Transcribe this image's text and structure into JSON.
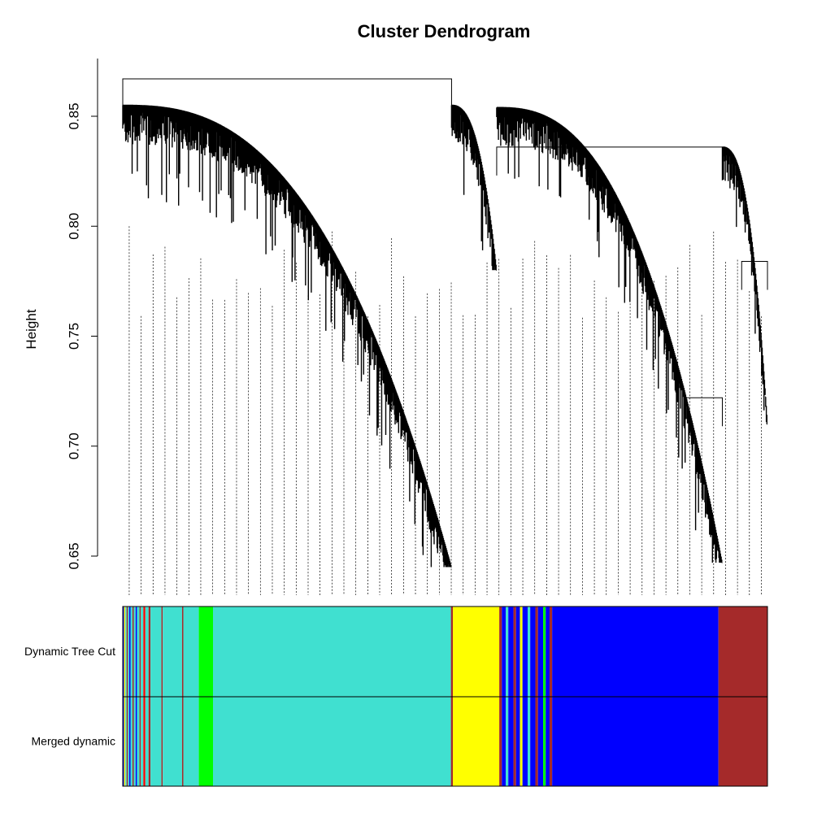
{
  "chart_data": {
    "type": "dendrogram",
    "title": "Cluster Dendrogram",
    "xlabel": "",
    "ylabel": "Height",
    "ylim": [
      0.645,
      0.868
    ],
    "yticks": [
      0.65,
      0.7,
      0.75,
      0.8,
      0.85
    ],
    "ytick_labels": [
      "0.65",
      "0.70",
      "0.75",
      "0.80",
      "0.85"
    ],
    "leaf_order_range": [
      0,
      1
    ],
    "clusters": [
      {
        "name": "turquoise",
        "color": "#40E0D0",
        "x_start": 0.138,
        "x_end": 0.51,
        "top_height": 0.855,
        "min_height": 0.645
      },
      {
        "name": "yellow",
        "color": "#FFFF00",
        "x_start": 0.51,
        "x_end": 0.58,
        "top_height": 0.855,
        "min_height": 0.78
      },
      {
        "name": "blue",
        "color": "#0000FF",
        "x_start": 0.58,
        "x_end": 0.93,
        "top_height": 0.854,
        "min_height": 0.647
      },
      {
        "name": "brown",
        "color": "#A52A2A",
        "x_start": 0.93,
        "x_end": 1.0,
        "top_height": 0.836,
        "min_height": 0.71
      }
    ],
    "merges": [
      {
        "left_x": 0.0,
        "right_x": 0.51,
        "height": 0.867
      },
      {
        "left_x": 0.58,
        "right_x": 0.93,
        "height": 0.836
      },
      {
        "left_x": 0.87,
        "right_x": 0.93,
        "height": 0.722
      },
      {
        "left_x": 0.96,
        "right_x": 1.0,
        "height": 0.784
      }
    ],
    "color_rows": [
      {
        "label": "Dynamic Tree Cut",
        "segments": [
          {
            "from": 0.0,
            "to": 0.002,
            "color": "#0000FF"
          },
          {
            "from": 0.002,
            "to": 0.004,
            "color": "#FFFF00"
          },
          {
            "from": 0.004,
            "to": 0.006,
            "color": "#40E0D0"
          },
          {
            "from": 0.006,
            "to": 0.008,
            "color": "#A52A2A"
          },
          {
            "from": 0.008,
            "to": 0.01,
            "color": "#40E0D0"
          },
          {
            "from": 0.01,
            "to": 0.012,
            "color": "#0000FF"
          },
          {
            "from": 0.012,
            "to": 0.015,
            "color": "#40E0D0"
          },
          {
            "from": 0.015,
            "to": 0.017,
            "color": "#A52A2A"
          },
          {
            "from": 0.017,
            "to": 0.02,
            "color": "#40E0D0"
          },
          {
            "from": 0.02,
            "to": 0.022,
            "color": "#0000FF"
          },
          {
            "from": 0.022,
            "to": 0.026,
            "color": "#40E0D0"
          },
          {
            "from": 0.026,
            "to": 0.028,
            "color": "#A52A2A"
          },
          {
            "from": 0.028,
            "to": 0.032,
            "color": "#40E0D0"
          },
          {
            "from": 0.032,
            "to": 0.035,
            "color": "#FF0000"
          },
          {
            "from": 0.035,
            "to": 0.04,
            "color": "#40E0D0"
          },
          {
            "from": 0.04,
            "to": 0.043,
            "color": "#A52A2A"
          },
          {
            "from": 0.043,
            "to": 0.06,
            "color": "#40E0D0"
          },
          {
            "from": 0.06,
            "to": 0.062,
            "color": "#A52A2A"
          },
          {
            "from": 0.062,
            "to": 0.092,
            "color": "#40E0D0"
          },
          {
            "from": 0.092,
            "to": 0.094,
            "color": "#A52A2A"
          },
          {
            "from": 0.094,
            "to": 0.118,
            "color": "#40E0D0"
          },
          {
            "from": 0.118,
            "to": 0.14,
            "color": "#00FF00"
          },
          {
            "from": 0.14,
            "to": 0.509,
            "color": "#40E0D0"
          },
          {
            "from": 0.509,
            "to": 0.512,
            "color": "#A52A2A"
          },
          {
            "from": 0.512,
            "to": 0.584,
            "color": "#FFFF00"
          },
          {
            "from": 0.584,
            "to": 0.588,
            "color": "#A52A2A"
          },
          {
            "from": 0.588,
            "to": 0.594,
            "color": "#0000FF"
          },
          {
            "from": 0.594,
            "to": 0.598,
            "color": "#40E0D0"
          },
          {
            "from": 0.598,
            "to": 0.606,
            "color": "#0000FF"
          },
          {
            "from": 0.606,
            "to": 0.61,
            "color": "#A52A2A"
          },
          {
            "from": 0.61,
            "to": 0.616,
            "color": "#0000FF"
          },
          {
            "from": 0.616,
            "to": 0.62,
            "color": "#FFFF00"
          },
          {
            "from": 0.62,
            "to": 0.628,
            "color": "#0000FF"
          },
          {
            "from": 0.628,
            "to": 0.632,
            "color": "#40E0D0"
          },
          {
            "from": 0.632,
            "to": 0.64,
            "color": "#0000FF"
          },
          {
            "from": 0.64,
            "to": 0.644,
            "color": "#A52A2A"
          },
          {
            "from": 0.644,
            "to": 0.652,
            "color": "#0000FF"
          },
          {
            "from": 0.652,
            "to": 0.656,
            "color": "#00FF00"
          },
          {
            "from": 0.656,
            "to": 0.662,
            "color": "#0000FF"
          },
          {
            "from": 0.662,
            "to": 0.666,
            "color": "#A52A2A"
          },
          {
            "from": 0.666,
            "to": 0.924,
            "color": "#0000FF"
          },
          {
            "from": 0.924,
            "to": 1.0,
            "color": "#A52A2A"
          }
        ]
      },
      {
        "label": "Merged dynamic",
        "segments": [
          {
            "from": 0.0,
            "to": 0.002,
            "color": "#0000FF"
          },
          {
            "from": 0.002,
            "to": 0.004,
            "color": "#FFFF00"
          },
          {
            "from": 0.004,
            "to": 0.006,
            "color": "#40E0D0"
          },
          {
            "from": 0.006,
            "to": 0.008,
            "color": "#A52A2A"
          },
          {
            "from": 0.008,
            "to": 0.01,
            "color": "#40E0D0"
          },
          {
            "from": 0.01,
            "to": 0.012,
            "color": "#0000FF"
          },
          {
            "from": 0.012,
            "to": 0.015,
            "color": "#40E0D0"
          },
          {
            "from": 0.015,
            "to": 0.017,
            "color": "#A52A2A"
          },
          {
            "from": 0.017,
            "to": 0.02,
            "color": "#40E0D0"
          },
          {
            "from": 0.02,
            "to": 0.022,
            "color": "#0000FF"
          },
          {
            "from": 0.022,
            "to": 0.026,
            "color": "#40E0D0"
          },
          {
            "from": 0.026,
            "to": 0.028,
            "color": "#A52A2A"
          },
          {
            "from": 0.028,
            "to": 0.032,
            "color": "#40E0D0"
          },
          {
            "from": 0.032,
            "to": 0.035,
            "color": "#FF0000"
          },
          {
            "from": 0.035,
            "to": 0.04,
            "color": "#40E0D0"
          },
          {
            "from": 0.04,
            "to": 0.043,
            "color": "#A52A2A"
          },
          {
            "from": 0.043,
            "to": 0.06,
            "color": "#40E0D0"
          },
          {
            "from": 0.06,
            "to": 0.062,
            "color": "#A52A2A"
          },
          {
            "from": 0.062,
            "to": 0.092,
            "color": "#40E0D0"
          },
          {
            "from": 0.092,
            "to": 0.094,
            "color": "#A52A2A"
          },
          {
            "from": 0.094,
            "to": 0.118,
            "color": "#40E0D0"
          },
          {
            "from": 0.118,
            "to": 0.14,
            "color": "#00FF00"
          },
          {
            "from": 0.14,
            "to": 0.509,
            "color": "#40E0D0"
          },
          {
            "from": 0.509,
            "to": 0.512,
            "color": "#A52A2A"
          },
          {
            "from": 0.512,
            "to": 0.584,
            "color": "#FFFF00"
          },
          {
            "from": 0.584,
            "to": 0.588,
            "color": "#A52A2A"
          },
          {
            "from": 0.588,
            "to": 0.594,
            "color": "#0000FF"
          },
          {
            "from": 0.594,
            "to": 0.598,
            "color": "#40E0D0"
          },
          {
            "from": 0.598,
            "to": 0.606,
            "color": "#0000FF"
          },
          {
            "from": 0.606,
            "to": 0.61,
            "color": "#A52A2A"
          },
          {
            "from": 0.61,
            "to": 0.616,
            "color": "#0000FF"
          },
          {
            "from": 0.616,
            "to": 0.62,
            "color": "#FFFF00"
          },
          {
            "from": 0.62,
            "to": 0.628,
            "color": "#0000FF"
          },
          {
            "from": 0.628,
            "to": 0.632,
            "color": "#40E0D0"
          },
          {
            "from": 0.632,
            "to": 0.64,
            "color": "#0000FF"
          },
          {
            "from": 0.64,
            "to": 0.644,
            "color": "#A52A2A"
          },
          {
            "from": 0.644,
            "to": 0.652,
            "color": "#0000FF"
          },
          {
            "from": 0.652,
            "to": 0.656,
            "color": "#00FF00"
          },
          {
            "from": 0.656,
            "to": 0.662,
            "color": "#0000FF"
          },
          {
            "from": 0.662,
            "to": 0.666,
            "color": "#A52A2A"
          },
          {
            "from": 0.666,
            "to": 0.924,
            "color": "#0000FF"
          },
          {
            "from": 0.924,
            "to": 1.0,
            "color": "#A52A2A"
          }
        ]
      }
    ]
  }
}
